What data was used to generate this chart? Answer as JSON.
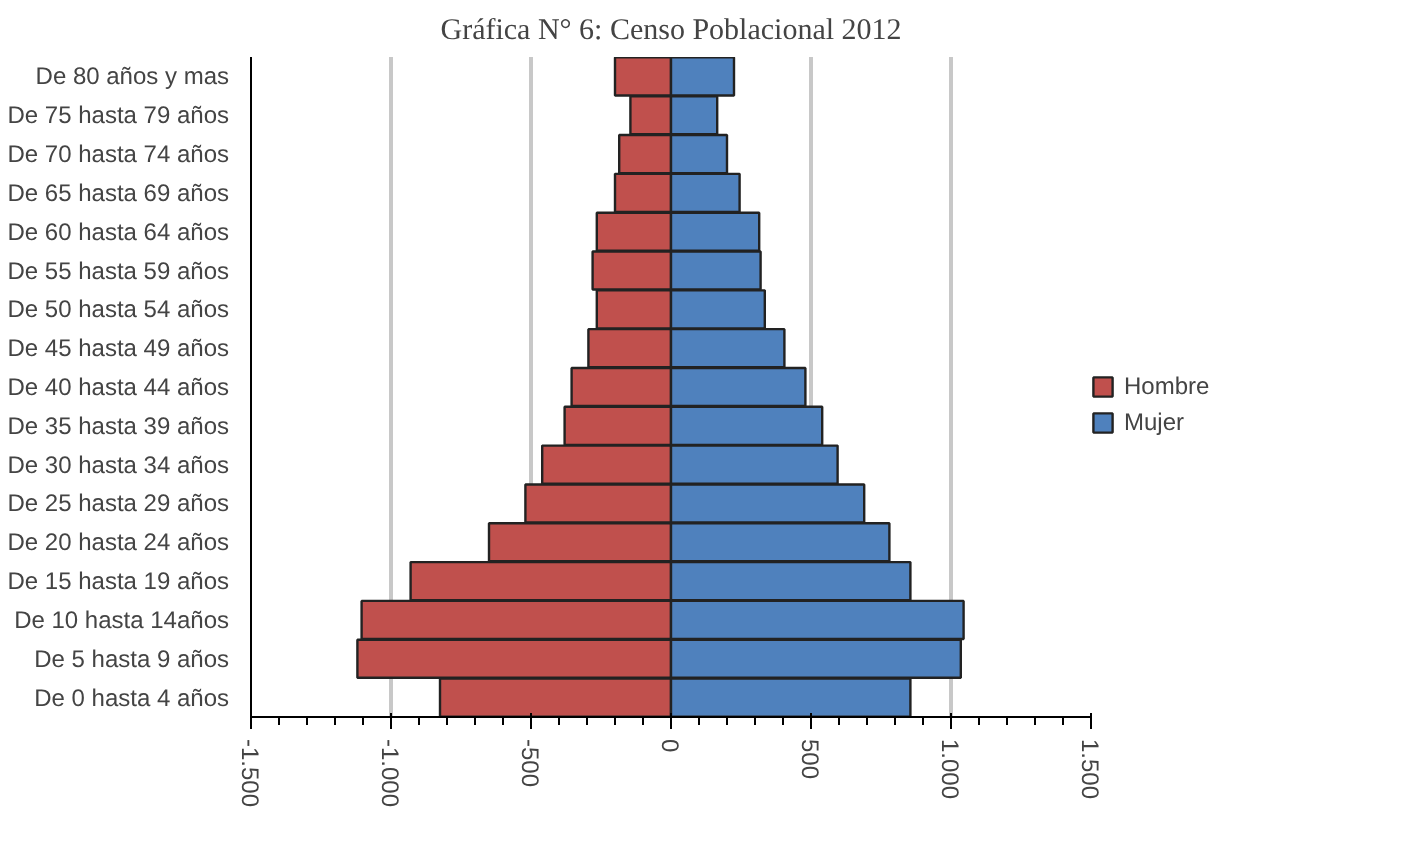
{
  "chart_data": {
    "type": "bar",
    "orientation": "horizontal",
    "title": "Gráfica N° 6: Censo Poblacional 2012",
    "categories": [
      "De 80 años y mas",
      "De 75 hasta 79 años",
      "De 70 hasta 74 años",
      "De 65 hasta 69 años",
      "De 60 hasta 64 años",
      "De 55 hasta 59 años",
      "De 50 hasta 54 años",
      "De 45 hasta 49 años",
      "De 40 hasta 44 años",
      "De 35 hasta 39 años",
      "De 30 hasta 34 años",
      "De 25 hasta 29 años",
      "De 20 hasta 24 años",
      "De 15 hasta 19 años",
      "De 10 hasta 14años",
      "De 5 hasta 9 años",
      "De 0 hasta 4 años"
    ],
    "series": [
      {
        "name": "Hombre",
        "color": "#c0504d",
        "values": [
          -200,
          -145,
          -185,
          -200,
          -265,
          -280,
          -265,
          -295,
          -355,
          -380,
          -460,
          -520,
          -650,
          -930,
          -1105,
          -1120,
          -825
        ]
      },
      {
        "name": "Mujer",
        "color": "#4f81bd",
        "values": [
          225,
          165,
          200,
          245,
          315,
          320,
          335,
          405,
          480,
          540,
          595,
          690,
          780,
          855,
          1045,
          1035,
          855
        ]
      }
    ],
    "xlim": [
      -1500,
      1500
    ],
    "xticks": [
      {
        "value": -1500,
        "label": "-1.500"
      },
      {
        "value": -1000,
        "label": "-1.000"
      },
      -500,
      0,
      500,
      {
        "value": 1000,
        "label": "1.000"
      },
      {
        "value": 1500,
        "label": "1.500"
      }
    ],
    "grid": "x",
    "legend": "right",
    "stacked": true
  }
}
